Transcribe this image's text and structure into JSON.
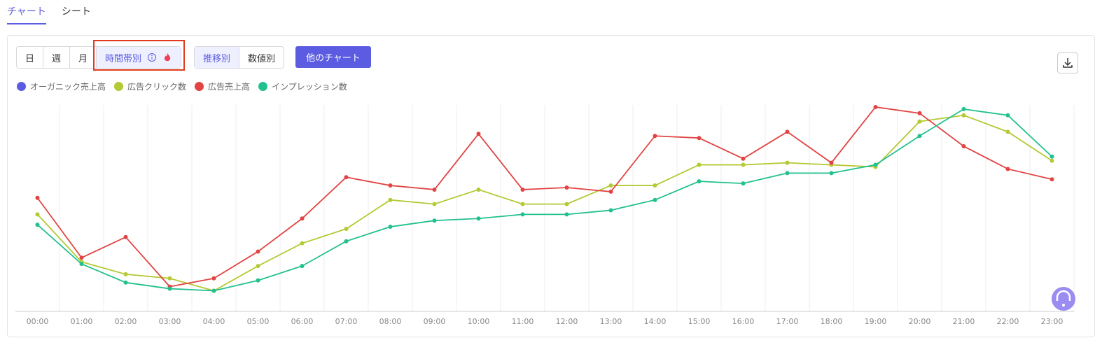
{
  "tabs": [
    "チャート",
    "シート"
  ],
  "period_buttons": [
    "日",
    "週",
    "月",
    "時間帯別"
  ],
  "view_buttons": [
    "推移別",
    "数値別"
  ],
  "other_chart_button": "他のチャート",
  "chart_data": {
    "type": "line",
    "categories": [
      "00:00",
      "01:00",
      "02:00",
      "03:00",
      "04:00",
      "05:00",
      "06:00",
      "07:00",
      "08:00",
      "09:00",
      "10:00",
      "11:00",
      "12:00",
      "13:00",
      "14:00",
      "15:00",
      "16:00",
      "17:00",
      "18:00",
      "19:00",
      "20:00",
      "21:00",
      "22:00",
      "23:00"
    ],
    "ylim": [
      0,
      100
    ],
    "grid": true,
    "series": [
      {
        "name": "オーガニック売上高",
        "color": "#5b5ce2",
        "values": [
          null,
          null,
          null,
          null,
          null,
          null,
          null,
          null,
          null,
          null,
          null,
          null,
          null,
          null,
          null,
          null,
          null,
          null,
          null,
          null,
          null,
          null,
          null,
          null
        ]
      },
      {
        "name": "広告クリック数",
        "color": "#b5c934",
        "values": [
          47,
          24,
          18,
          16,
          10,
          22,
          33,
          40,
          54,
          52,
          59,
          52,
          52,
          61,
          61,
          71,
          71,
          72,
          71,
          70,
          92,
          95,
          87,
          73
        ]
      },
      {
        "name": "広告売上高",
        "color": "#e24444",
        "values": [
          55,
          26,
          36,
          12,
          16,
          29,
          45,
          65,
          61,
          59,
          86,
          59,
          60,
          58,
          85,
          84,
          74,
          87,
          72,
          99,
          96,
          80,
          69,
          64
        ]
      },
      {
        "name": "インプレッション数",
        "color": "#22c08f",
        "values": [
          42,
          23,
          14,
          11,
          10,
          15,
          22,
          34,
          41,
          44,
          45,
          47,
          47,
          49,
          54,
          63,
          62,
          67,
          67,
          71,
          85,
          98,
          95,
          75
        ]
      }
    ]
  }
}
